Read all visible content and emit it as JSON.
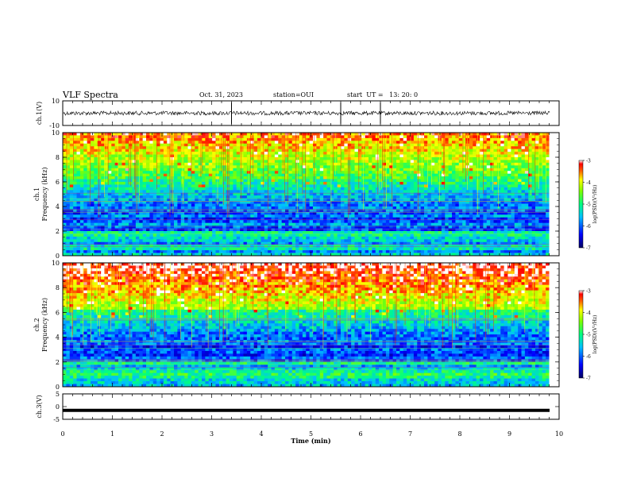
{
  "header": {
    "title": "VLF Spectra",
    "date": "Oct. 31, 2023",
    "station": "station=OUI",
    "start": "start  UT =   13: 20: 0"
  },
  "chart_data": [
    {
      "type": "line",
      "name": "ch1-waveform",
      "ylabel": "ch.1(V)",
      "yticks": [
        "10",
        "-10"
      ],
      "ylim": [
        -10,
        10
      ],
      "xlim": [
        0,
        10
      ],
      "trace": {
        "color": "#000000",
        "baseline": 0,
        "spikes_at_min": [
          3.4,
          5.6,
          6.4
        ]
      }
    },
    {
      "type": "heatmap",
      "name": "ch1-spectrogram",
      "ylabel": "ch.1\nFrequency  (kHz)",
      "yticks": [
        "0",
        "2",
        "4",
        "6",
        "8",
        "10"
      ],
      "ylim": [
        0,
        10
      ],
      "xlim": [
        0,
        9.8
      ],
      "colorbar": {
        "label": "log(PSD)(V²/Hz)",
        "ticks": [
          "-3",
          "-4",
          "-5",
          "-6",
          "-7"
        ],
        "range": [
          -7,
          -3
        ]
      },
      "colormap": [
        "#000080",
        "#0000ff",
        "#00bfff",
        "#00ff80",
        "#80ff00",
        "#ffff00",
        "#ff8000",
        "#ff0000",
        "#ffffff"
      ]
    },
    {
      "type": "heatmap",
      "name": "ch2-spectrogram",
      "ylabel": "ch.2\nFrequency  (kHz)",
      "yticks": [
        "0",
        "2",
        "4",
        "6",
        "8",
        "10"
      ],
      "ylim": [
        0,
        10
      ],
      "xlim": [
        0,
        9.8
      ],
      "colorbar": {
        "label": "log(PSD)(V²/Hz)",
        "ticks": [
          "-3",
          "-4",
          "-5",
          "-6",
          "-7"
        ],
        "range": [
          -7,
          -3
        ]
      },
      "colormap": [
        "#000080",
        "#0000ff",
        "#00bfff",
        "#00ff80",
        "#80ff00",
        "#ffff00",
        "#ff8000",
        "#ff0000",
        "#ffffff"
      ]
    },
    {
      "type": "line",
      "name": "ch3-waveform",
      "ylabel": "ch.3(V)",
      "yticks": [
        "5",
        "0",
        "-5"
      ],
      "ylim": [
        -5,
        5
      ],
      "xlim": [
        0,
        10
      ],
      "trace": {
        "color": "#000000",
        "value": -1.5
      }
    }
  ],
  "xaxis": {
    "label": "Time  (min)",
    "ticks": [
      "0",
      "1",
      "2",
      "3",
      "4",
      "5",
      "6",
      "7",
      "8",
      "9",
      "10"
    ]
  }
}
